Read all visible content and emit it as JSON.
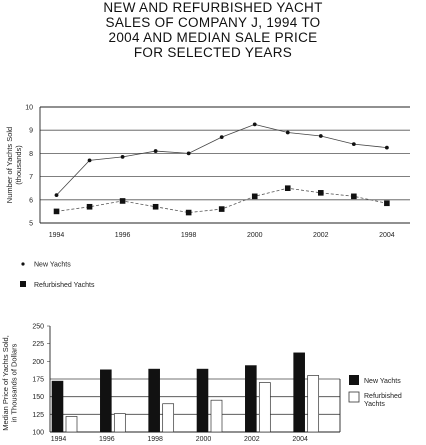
{
  "title_lines": [
    "NEW AND REFURBISHED YACHT",
    "SALES OF COMPANY J, 1994 TO",
    "2004 AND MEDIAN SALE PRICE",
    "FOR SELECTED YEARS"
  ],
  "chart_data": [
    {
      "type": "line",
      "ylabel": "Number of Yachts Sold (thousands)",
      "ylabel_lines": [
        "Number of Yachts Sold",
        "(thousands)"
      ],
      "x_ticks": [
        "1994",
        "1996",
        "1998",
        "2000",
        "2002",
        "2004"
      ],
      "xlim": [
        1993.5,
        2004.7
      ],
      "y_ticks": [
        "5",
        "6",
        "7",
        "8",
        "9",
        "10"
      ],
      "ylim": [
        5,
        10
      ],
      "x": [
        1994,
        1995,
        1996,
        1997,
        1998,
        1999,
        2000,
        2001,
        2002,
        2003,
        2004
      ],
      "series": [
        {
          "name": "New Yachts",
          "marker": "dot",
          "values": [
            6.2,
            7.7,
            7.85,
            8.1,
            8.0,
            8.7,
            9.25,
            8.9,
            8.75,
            8.4,
            8.25
          ]
        },
        {
          "name": "Refurbished Yachts",
          "marker": "square",
          "values": [
            5.5,
            5.7,
            5.95,
            5.7,
            5.45,
            5.6,
            6.15,
            6.5,
            6.3,
            6.15,
            5.85
          ]
        }
      ],
      "grid": "horizontal at 6, 7, 8, 9",
      "legend": "below"
    },
    {
      "type": "bar",
      "ylabel": "Median Price of Yachts Sold, in Thousands of Dollars",
      "ylabel_lines": [
        "Median Price of Yachts Sold,",
        "in Thousands of Dollars"
      ],
      "categories": [
        "1994",
        "1996",
        "1998",
        "2000",
        "2002",
        "2004"
      ],
      "y_ticks": [
        "100",
        "125",
        "150",
        "175",
        "200",
        "225",
        "250"
      ],
      "ylim": [
        100,
        250
      ],
      "series": [
        {
          "name": "New Yachts",
          "fill": "#111111",
          "values": [
            172,
            188,
            189,
            189,
            194,
            212
          ]
        },
        {
          "name": "Refurbished Yachts",
          "fill": "#ffffff",
          "values": [
            122,
            126,
            140,
            145,
            170,
            180
          ]
        }
      ],
      "grid": "horizontal at 125, 150, 175",
      "legend": "right"
    }
  ]
}
